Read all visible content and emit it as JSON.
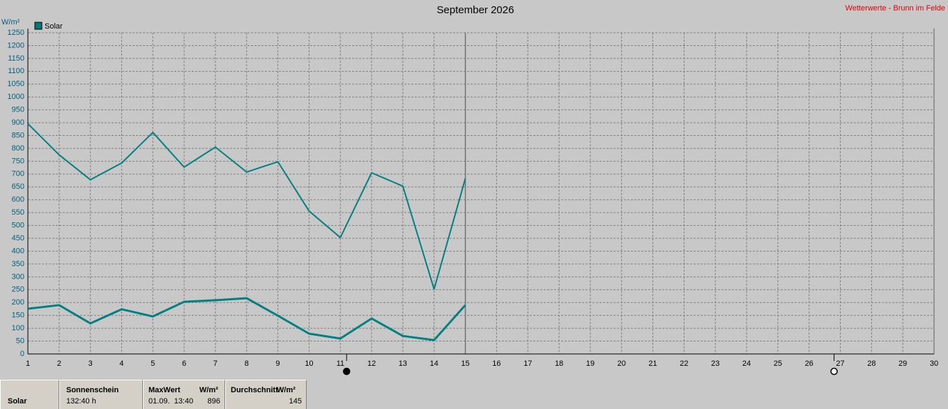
{
  "chart_data": {
    "type": "line",
    "title": "September 2026",
    "source": "Wetterwerte - Brunn im Felde",
    "y_unit": "W/m²",
    "legend": {
      "label": "Solar",
      "color": "#007878"
    },
    "x": [
      1,
      2,
      3,
      4,
      5,
      6,
      7,
      8,
      9,
      10,
      11,
      12,
      13,
      14,
      15
    ],
    "series": [
      {
        "color": "#008080",
        "width": 2,
        "values": [
          896,
          775,
          678,
          743,
          862,
          727,
          805,
          708,
          748,
          556,
          453,
          705,
          653,
          252,
          683
        ]
      },
      {
        "color": "#008080",
        "width": 3,
        "values": [
          176,
          190,
          119,
          174,
          146,
          203,
          209,
          217,
          149,
          79,
          60,
          138,
          70,
          54,
          190
        ]
      }
    ],
    "xlim": [
      1,
      30
    ],
    "xticks": [
      1,
      2,
      3,
      4,
      5,
      6,
      7,
      8,
      9,
      10,
      11,
      12,
      13,
      14,
      15,
      16,
      17,
      18,
      19,
      20,
      21,
      22,
      23,
      24,
      25,
      26,
      27,
      28,
      29,
      30
    ],
    "ylim": [
      0,
      1250
    ],
    "yticks": [
      0,
      50,
      100,
      150,
      200,
      250,
      300,
      350,
      400,
      450,
      500,
      550,
      600,
      650,
      700,
      750,
      800,
      850,
      900,
      950,
      1000,
      1050,
      1100,
      1150,
      1200,
      1250
    ],
    "grid": true,
    "today": 15,
    "moon_phases": [
      {
        "day": 11.2,
        "phase": "new"
      },
      {
        "day": 26.8,
        "phase": "full"
      }
    ]
  },
  "summary": {
    "row_label": "Solar",
    "sunshine": {
      "header": "Sonnenschein",
      "value": "132:40 h"
    },
    "max": {
      "header": "MaxWert",
      "unit": "W/m²",
      "date": "01.09.  13:40",
      "value": 896
    },
    "avg": {
      "header": "Durchschnitt",
      "unit": "W/m²",
      "value": 145
    }
  }
}
